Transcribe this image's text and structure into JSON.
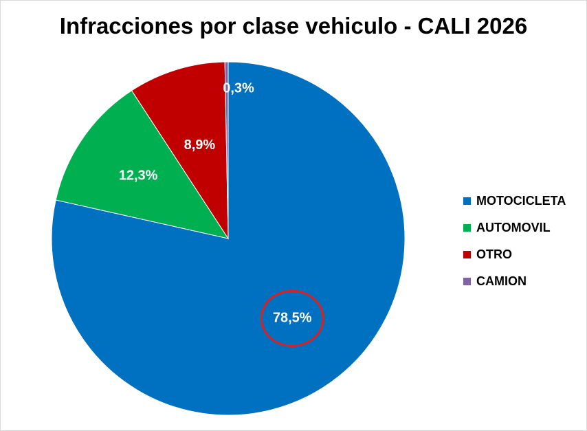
{
  "chart_data": {
    "type": "pie",
    "title": "Infracciones por clase vehiculo - CALI 2026",
    "slices": [
      {
        "name": "MOTOCICLETA",
        "value": 78.5,
        "label": "78,5%",
        "color": "#0070C0"
      },
      {
        "name": "AUTOMOVIL",
        "value": 12.3,
        "label": "12,3%",
        "color": "#00B050"
      },
      {
        "name": "OTRO",
        "value": 8.9,
        "label": "8,9%",
        "color": "#C00000"
      },
      {
        "name": "CAMION",
        "value": 0.3,
        "label": "0,3%",
        "color": "#8064A2"
      }
    ],
    "legend_position": "right",
    "highlight": {
      "slice": "MOTOCICLETA",
      "shape": "circle",
      "color": "#E0201E"
    }
  }
}
